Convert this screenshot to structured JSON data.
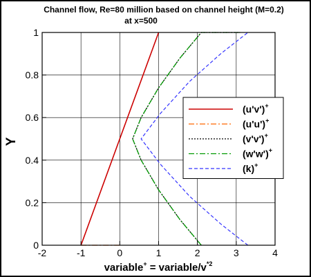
{
  "chart_data": {
    "type": "line",
    "title": "Channel flow, Re=80 million based on channel height (M=0.2)",
    "subtitle": "at x=500",
    "xlabel": {
      "main": "variable",
      "sup": "+",
      "mid": " = variable/v",
      "sup2": "*2"
    },
    "ylabel": "Y",
    "xlim": [
      -2,
      4
    ],
    "ylim": [
      0,
      1
    ],
    "xticks": [
      -2,
      -1,
      0,
      1,
      2,
      3,
      4
    ],
    "yticks": [
      0,
      0.2,
      0.4,
      0.6,
      0.8,
      1
    ],
    "xtick_labels": [
      "-2",
      "-1",
      "0",
      "1",
      "2",
      "3",
      "4"
    ],
    "ytick_labels": [
      "0",
      "0.2",
      "0.4",
      "0.6",
      "0.8",
      "1"
    ],
    "grid": true,
    "legend_position": "right",
    "series": [
      {
        "name": "(u'v')",
        "sup": "+",
        "color": "#cc0000",
        "dash": "",
        "width": 1.6,
        "x": [
          -1,
          0,
          1,
          1
        ],
        "y": [
          0,
          0.5,
          1,
          1
        ]
      },
      {
        "name": "(u'u')",
        "sup": "+",
        "color": "#ff6600",
        "dash": "8,3,2,3",
        "width": 1.3,
        "x": [
          -1,
          0
        ],
        "y": [
          0,
          0
        ]
      },
      {
        "name": "(v'v')",
        "sup": "+",
        "color": "#000000",
        "dash": "2,2",
        "width": 1.3,
        "x": [
          2.1,
          1.55,
          1.0,
          0.55,
          0.33,
          0.55,
          1.0,
          1.55,
          2.1,
          3.1
        ],
        "y": [
          0,
          0.12,
          0.26,
          0.4,
          0.5,
          0.6,
          0.74,
          0.88,
          1,
          1
        ]
      },
      {
        "name": "(w'w')",
        "sup": "+",
        "color": "#009900",
        "dash": "8,3,2,3",
        "width": 1.3,
        "x": [
          2.1,
          1.55,
          1.0,
          0.55,
          0.33,
          0.55,
          1.0,
          1.55,
          2.1,
          3.1
        ],
        "y": [
          0,
          0.12,
          0.26,
          0.4,
          0.5,
          0.6,
          0.74,
          0.88,
          1,
          1
        ]
      },
      {
        "name": "(k)",
        "sup": "+",
        "color": "#3333ff",
        "dash": "5,3",
        "width": 1.2,
        "x": [
          3.3,
          2.6,
          1.8,
          1.05,
          0.55,
          1.05,
          1.8,
          2.6,
          3.3,
          3.3
        ],
        "y": [
          0,
          0.1,
          0.23,
          0.38,
          0.5,
          0.62,
          0.77,
          0.9,
          1,
          1
        ]
      }
    ]
  }
}
